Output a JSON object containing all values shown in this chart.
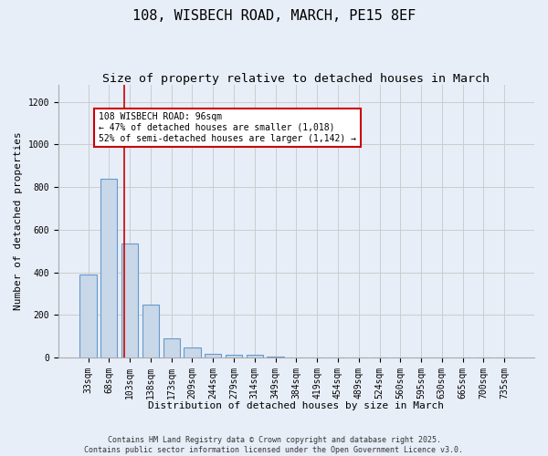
{
  "title1": "108, WISBECH ROAD, MARCH, PE15 8EF",
  "title2": "Size of property relative to detached houses in March",
  "xlabel": "Distribution of detached houses by size in March",
  "ylabel": "Number of detached properties",
  "bin_labels": [
    "33sqm",
    "68sqm",
    "103sqm",
    "138sqm",
    "173sqm",
    "209sqm",
    "244sqm",
    "279sqm",
    "314sqm",
    "349sqm",
    "384sqm",
    "419sqm",
    "454sqm",
    "489sqm",
    "524sqm",
    "560sqm",
    "595sqm",
    "630sqm",
    "665sqm",
    "700sqm",
    "735sqm"
  ],
  "bar_heights": [
    390,
    840,
    535,
    248,
    90,
    50,
    18,
    14,
    13,
    7,
    0,
    0,
    0,
    0,
    0,
    0,
    0,
    0,
    0,
    0,
    0
  ],
  "bar_color": "#c8d8e8",
  "bar_edge_color": "#6699cc",
  "bar_width": 0.8,
  "ylim": [
    0,
    1280
  ],
  "yticks": [
    0,
    200,
    400,
    600,
    800,
    1000,
    1200
  ],
  "red_line_x": 1.72,
  "annotation_text": "108 WISBECH ROAD: 96sqm\n← 47% of detached houses are smaller (1,018)\n52% of semi-detached houses are larger (1,142) →",
  "annotation_box_color": "#ffffff",
  "annotation_box_edge": "#cc0000",
  "grid_color": "#cccccc",
  "background_color": "#e8eef8",
  "footer_line1": "Contains HM Land Registry data © Crown copyright and database right 2025.",
  "footer_line2": "Contains public sector information licensed under the Open Government Licence v3.0.",
  "title1_fontsize": 11,
  "title2_fontsize": 9.5,
  "xlabel_fontsize": 8,
  "ylabel_fontsize": 8,
  "tick_fontsize": 7,
  "annotation_fontsize": 7
}
